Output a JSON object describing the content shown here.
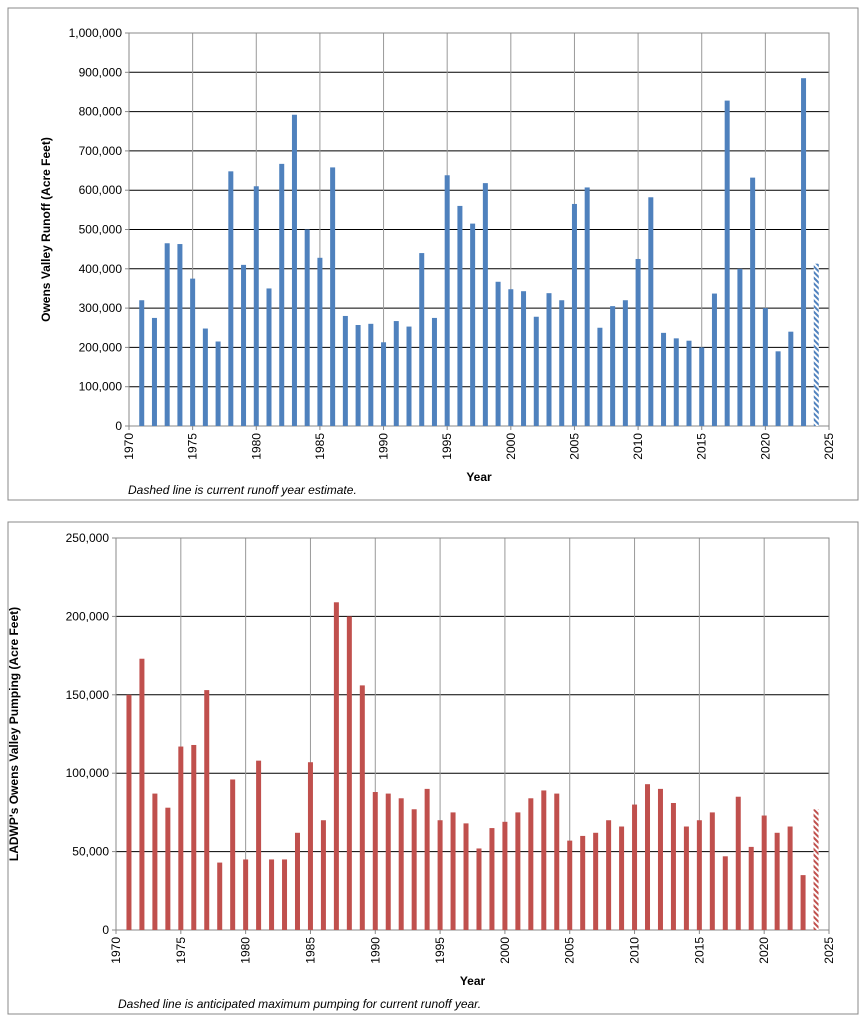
{
  "chart_data": [
    {
      "type": "bar",
      "ylabel": "Owens Valley Runoff (Acre Feet)",
      "xlabel": "Year",
      "note": "Dashed line is current runoff year estimate.",
      "x": [
        1971,
        1972,
        1973,
        1974,
        1975,
        1976,
        1977,
        1978,
        1979,
        1980,
        1981,
        1982,
        1983,
        1984,
        1985,
        1986,
        1987,
        1988,
        1989,
        1990,
        1991,
        1992,
        1993,
        1994,
        1995,
        1996,
        1997,
        1998,
        1999,
        2000,
        2001,
        2002,
        2003,
        2004,
        2005,
        2006,
        2007,
        2008,
        2009,
        2010,
        2011,
        2012,
        2013,
        2014,
        2015,
        2016,
        2017,
        2018,
        2019,
        2020,
        2021,
        2022,
        2023,
        2024
      ],
      "values": [
        320000,
        275000,
        465000,
        463000,
        375000,
        248000,
        215000,
        648000,
        410000,
        610000,
        350000,
        667000,
        792000,
        500000,
        428000,
        658000,
        280000,
        257000,
        260000,
        213000,
        267000,
        253000,
        440000,
        275000,
        638000,
        560000,
        515000,
        618000,
        367000,
        348000,
        343000,
        278000,
        338000,
        320000,
        565000,
        607000,
        250000,
        305000,
        320000,
        425000,
        582000,
        237000,
        223000,
        217000,
        200000,
        337000,
        828000,
        400000,
        632000,
        300000,
        190000,
        240000,
        885000,
        413000
      ],
      "color": "#4f81bd",
      "hatched_last": true,
      "grid": true,
      "xlim": [
        1970,
        2025
      ],
      "xticks": [
        1970,
        1975,
        1980,
        1985,
        1990,
        1995,
        2000,
        2005,
        2010,
        2015,
        2020,
        2025
      ],
      "ylim": [
        0,
        1000000
      ],
      "yticks": [
        0,
        {
          "value": 100000,
          "label": "100,000"
        },
        {
          "value": 200000,
          "label": "200,000"
        },
        {
          "value": 300000,
          "label": "300,000"
        },
        {
          "value": 400000,
          "label": "400,000"
        },
        {
          "value": 500000,
          "label": "500,000"
        },
        {
          "value": 600000,
          "label": "600,000"
        },
        {
          "value": 700000,
          "label": "700,000"
        },
        {
          "value": 800000,
          "label": "800,000"
        },
        {
          "value": 900000,
          "label": "900,000"
        },
        {
          "value": 1000000,
          "label": "1,000,000"
        }
      ]
    },
    {
      "type": "bar",
      "ylabel": "LADWP's Owens Valley Pumping (Acre Feet)",
      "xlabel": "Year",
      "note": "Dashed line is anticipated maximum pumping for current runoff year.",
      "x": [
        1971,
        1972,
        1973,
        1974,
        1975,
        1976,
        1977,
        1978,
        1979,
        1980,
        1981,
        1982,
        1983,
        1984,
        1985,
        1986,
        1987,
        1988,
        1989,
        1990,
        1991,
        1992,
        1993,
        1994,
        1995,
        1996,
        1997,
        1998,
        1999,
        2000,
        2001,
        2002,
        2003,
        2004,
        2005,
        2006,
        2007,
        2008,
        2009,
        2010,
        2011,
        2012,
        2013,
        2014,
        2015,
        2016,
        2017,
        2018,
        2019,
        2020,
        2021,
        2022,
        2023,
        2024
      ],
      "values": [
        150000,
        173000,
        87000,
        78000,
        117000,
        118000,
        153000,
        43000,
        96000,
        45000,
        108000,
        45000,
        45000,
        62000,
        107000,
        70000,
        209000,
        200000,
        156000,
        88000,
        87000,
        84000,
        77000,
        90000,
        70000,
        75000,
        68000,
        52000,
        65000,
        69000,
        75000,
        84000,
        89000,
        87000,
        57000,
        60000,
        62000,
        70000,
        66000,
        80000,
        93000,
        90000,
        81000,
        66000,
        70000,
        75000,
        47000,
        85000,
        53000,
        73000,
        62000,
        66000,
        35000,
        77000
      ],
      "color": "#c0504d",
      "hatched_last": true,
      "grid": true,
      "xlim": [
        1970,
        2025
      ],
      "xticks": [
        1970,
        1975,
        1980,
        1985,
        1990,
        1995,
        2000,
        2005,
        2010,
        2015,
        2020,
        2025
      ],
      "ylim": [
        0,
        250000
      ],
      "yticks": [
        0,
        {
          "value": 50000,
          "label": "50,000"
        },
        {
          "value": 100000,
          "label": "100,000"
        },
        {
          "value": 150000,
          "label": "150,000"
        },
        {
          "value": 200000,
          "label": "200,000"
        },
        {
          "value": 250000,
          "label": "250,000"
        }
      ]
    }
  ]
}
